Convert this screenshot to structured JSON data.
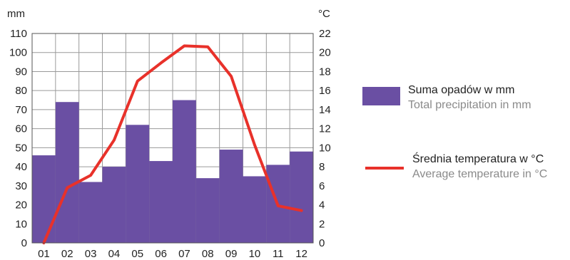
{
  "chart_data": {
    "type": "bar",
    "categories": [
      "01",
      "02",
      "03",
      "04",
      "05",
      "06",
      "07",
      "08",
      "09",
      "10",
      "11",
      "12"
    ],
    "series": [
      {
        "name": "Suma opadów w mm",
        "name_secondary": "Total precipitation in mm",
        "type": "bar",
        "axis": "left",
        "color": "#6a4fa3",
        "values": [
          46,
          74,
          32,
          40,
          62,
          43,
          75,
          34,
          49,
          35,
          41,
          48
        ]
      },
      {
        "name": "Średnia temperatura w °C",
        "name_secondary": "Average temperature in °C",
        "type": "line",
        "axis": "right",
        "color": "#e8312a",
        "values": [
          0,
          5.8,
          7.1,
          10.8,
          17.0,
          18.9,
          20.7,
          20.6,
          17.5,
          10.3,
          3.9,
          3.4
        ]
      }
    ],
    "y_left": {
      "unit": "mm",
      "ylim": [
        0,
        110
      ],
      "ticks": [
        0,
        10,
        20,
        30,
        40,
        50,
        60,
        70,
        80,
        90,
        100,
        110
      ]
    },
    "y_right": {
      "unit": "°C",
      "ylim": [
        0,
        22
      ],
      "ticks": [
        0,
        2,
        4,
        6,
        8,
        10,
        12,
        14,
        16,
        18,
        20,
        22
      ]
    },
    "grid": true,
    "legend": "right"
  }
}
